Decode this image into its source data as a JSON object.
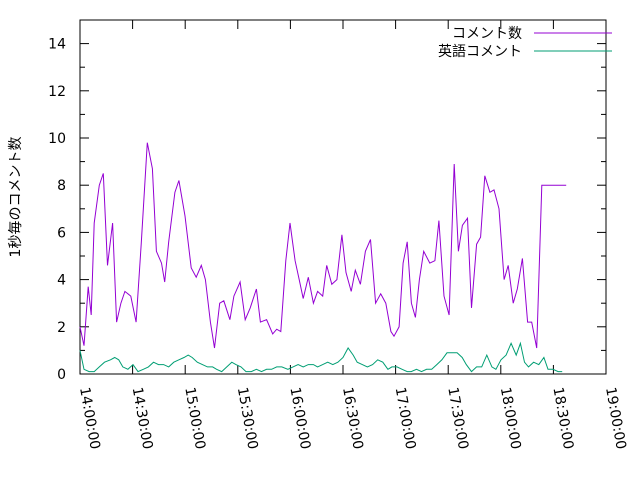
{
  "chart_data": {
    "type": "line",
    "title": "",
    "xlabel": "",
    "ylabel": "1秒毎のコメント数",
    "ylim": [
      0,
      15
    ],
    "yticks": [
      0,
      2,
      4,
      6,
      8,
      10,
      12,
      14
    ],
    "x_unit": "minutes since 14:00:00",
    "xlim": [
      0,
      300
    ],
    "xticks": [
      {
        "value": 0,
        "label": "14:00:00"
      },
      {
        "value": 30,
        "label": "14:30:00"
      },
      {
        "value": 60,
        "label": "15:00:00"
      },
      {
        "value": 90,
        "label": "15:30:00"
      },
      {
        "value": 120,
        "label": "16:00:00"
      },
      {
        "value": 150,
        "label": "16:30:00"
      },
      {
        "value": 180,
        "label": "17:00:00"
      },
      {
        "value": 210,
        "label": "17:30:00"
      },
      {
        "value": 240,
        "label": "18:00:00"
      },
      {
        "value": 270,
        "label": "18:30:00"
      },
      {
        "value": 300,
        "label": "19:00:00"
      }
    ],
    "grid": false,
    "legend_position": "top-right",
    "series": [
      {
        "name": "コメント数",
        "color": "#9400d3",
        "x": [
          0,
          2.3,
          4.7,
          6.4,
          8.1,
          11,
          13.3,
          15.7,
          18.6,
          20.9,
          23.3,
          25.6,
          29,
          32,
          34.9,
          38.4,
          41.3,
          43.6,
          46.5,
          48.3,
          50.6,
          54.1,
          56.4,
          59.9,
          63.4,
          66.3,
          69.2,
          71.5,
          74.4,
          76.7,
          79.7,
          82,
          85.5,
          87.8,
          91.3,
          94.2,
          97.1,
          100.6,
          102.9,
          106.4,
          109.9,
          112.2,
          114.5,
          117.4,
          119.8,
          122.7,
          125,
          127.3,
          130.2,
          133.1,
          135.5,
          138.4,
          140.7,
          143.6,
          146.5,
          149.4,
          151.7,
          154.7,
          157,
          159.9,
          162.8,
          165.7,
          168.6,
          171.5,
          174.4,
          177.3,
          179.1,
          182,
          184.3,
          186.6,
          189,
          191.3,
          193.6,
          196,
          199.5,
          202.4,
          204.7,
          207.6,
          210.5,
          213.4,
          215.8,
          218.1,
          221,
          223.3,
          226.2,
          228.5,
          230.9,
          233.8,
          236.1,
          239,
          241.9,
          244.2,
          247.1,
          249.4,
          252.3,
          255.3,
          257.6,
          260.5,
          263.4,
          266.3,
          268.6,
          270.9,
          273.3,
          275.6,
          277.3
        ],
        "y": [
          2,
          1.2,
          3.7,
          2.5,
          6.4,
          8,
          8.5,
          4.6,
          6.4,
          2.2,
          3,
          3.5,
          3.3,
          2.2,
          5.5,
          9.8,
          8.7,
          5.2,
          4.7,
          3.9,
          5.6,
          7.7,
          8.2,
          6.7,
          4.5,
          4.1,
          4.6,
          4,
          2.2,
          1.1,
          3,
          3.1,
          2.3,
          3.3,
          3.9,
          2.3,
          2.8,
          3.6,
          2.2,
          2.3,
          1.7,
          1.9,
          1.8,
          4.8,
          6.4,
          4.8,
          4,
          3.2,
          4.1,
          3,
          3.5,
          3.3,
          4.6,
          3.8,
          4,
          5.9,
          4.3,
          3.5,
          4.4,
          3.8,
          5.2,
          5.7,
          3,
          3.4,
          3,
          1.8,
          1.6,
          2,
          4.7,
          5.6,
          3,
          2.4,
          4,
          5.2,
          4.7,
          4.8,
          6.5,
          3.3,
          2.5,
          8.9,
          5.2,
          6.3,
          6.6,
          2.8,
          5.5,
          5.8,
          8.4,
          7.7,
          7.8,
          7,
          4,
          4.6,
          3,
          3.6,
          4.9,
          2.2,
          2.2,
          1.1,
          8,
          8,
          8,
          8,
          8,
          8,
          8
        ],
        "y_note": "last point at 18:35 ≈ 8.0"
      },
      {
        "name": "英語コメント",
        "color": "#009e73",
        "x": [
          0,
          2.3,
          5.2,
          8.1,
          11,
          14,
          17.4,
          19.8,
          22.1,
          24.4,
          27.3,
          30.2,
          33.1,
          36.1,
          39,
          41.9,
          44.8,
          47.7,
          50.6,
          53.5,
          56.4,
          59.3,
          61.7,
          64,
          66.9,
          69.8,
          72.7,
          75.6,
          77.9,
          80.8,
          83.7,
          86.6,
          88.9,
          91.8,
          94.7,
          97.7,
          100.6,
          103.5,
          106.4,
          109.3,
          112.2,
          115.1,
          118.6,
          121.5,
          124.4,
          127.3,
          130.2,
          133.1,
          135.5,
          138.4,
          141.3,
          144.2,
          147.1,
          150,
          152.9,
          155.8,
          158.1,
          161,
          163.9,
          166.9,
          169.8,
          172.7,
          175.6,
          177.9,
          180.8,
          183.7,
          186.6,
          188.9,
          191.9,
          194.8,
          197.7,
          200.6,
          203.5,
          206.4,
          209.3,
          212.2,
          215.1,
          218,
          220.3,
          223.3,
          226.2,
          229.1,
          232,
          234.9,
          237.2,
          240.1,
          243,
          245.9,
          248.8,
          251.2,
          253.5,
          255.8,
          258.7,
          261.7,
          264.6,
          266.9,
          269.8,
          272.7,
          275
        ],
        "y": [
          1,
          0.2,
          0.1,
          0.1,
          0.3,
          0.5,
          0.6,
          0.7,
          0.6,
          0.3,
          0.2,
          0.4,
          0.1,
          0.2,
          0.3,
          0.5,
          0.4,
          0.4,
          0.3,
          0.5,
          0.6,
          0.7,
          0.8,
          0.7,
          0.5,
          0.4,
          0.3,
          0.3,
          0.2,
          0.1,
          0.3,
          0.5,
          0.4,
          0.3,
          0.1,
          0.1,
          0.2,
          0.1,
          0.2,
          0.2,
          0.3,
          0.3,
          0.2,
          0.3,
          0.4,
          0.3,
          0.4,
          0.4,
          0.3,
          0.4,
          0.5,
          0.4,
          0.5,
          0.7,
          1.1,
          0.8,
          0.5,
          0.4,
          0.3,
          0.4,
          0.6,
          0.5,
          0.2,
          0.3,
          0.3,
          0.2,
          0.1,
          0.1,
          0.2,
          0.1,
          0.2,
          0.2,
          0.4,
          0.6,
          0.9,
          0.9,
          0.9,
          0.7,
          0.4,
          0.1,
          0.3,
          0.3,
          0.8,
          0.3,
          0.2,
          0.6,
          0.8,
          1.3,
          0.8,
          1.3,
          0.5,
          0.3,
          0.5,
          0.4,
          0.7,
          0.2,
          0.2,
          0.1,
          0.1
        ]
      }
    ]
  }
}
